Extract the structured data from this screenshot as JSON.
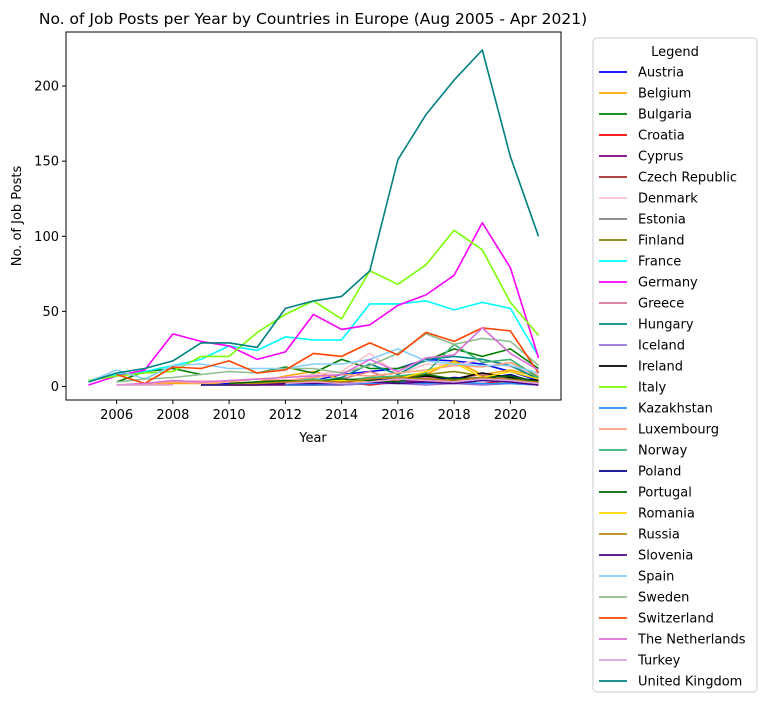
{
  "chart_data": {
    "type": "line",
    "title": "No. of Job Posts per Year by Countries in Europe (Aug 2005 - Apr 2021)",
    "xlabel": "Year",
    "ylabel": "No. of Job Posts",
    "xlim": [
      2004.2,
      2021.8
    ],
    "ylim": [
      -9,
      236
    ],
    "x_ticks": [
      2006,
      2008,
      2010,
      2012,
      2014,
      2016,
      2018,
      2020
    ],
    "y_ticks": [
      0,
      50,
      100,
      150,
      200
    ],
    "legend_title": "Legend",
    "legend_position": "outside right",
    "x": [
      2005,
      2006,
      2007,
      2008,
      2009,
      2010,
      2011,
      2012,
      2013,
      2014,
      2015,
      2016,
      2017,
      2018,
      2019,
      2020,
      2021
    ],
    "series": [
      {
        "name": "Austria",
        "color": "#0000ff",
        "values": [
          null,
          null,
          null,
          null,
          1,
          2,
          3,
          2,
          4,
          8,
          10,
          12,
          18,
          17,
          15,
          10,
          4
        ]
      },
      {
        "name": "Belgium",
        "color": "#ffa500",
        "values": [
          null,
          1,
          1,
          2,
          2,
          1,
          3,
          7,
          10,
          5,
          3,
          7,
          8,
          17,
          8,
          11,
          7
        ]
      },
      {
        "name": "Bulgaria",
        "color": "#008000",
        "values": [
          null,
          3,
          10,
          12,
          8,
          null,
          9,
          13,
          9,
          18,
          12,
          12,
          17,
          25,
          20,
          25,
          12
        ]
      },
      {
        "name": "Croatia",
        "color": "#ff0000",
        "values": [
          null,
          null,
          null,
          null,
          null,
          2,
          2,
          2,
          3,
          3,
          1,
          3,
          4,
          3,
          2,
          4,
          2
        ]
      },
      {
        "name": "Cyprus",
        "color": "#800080",
        "values": [
          null,
          null,
          null,
          null,
          null,
          1,
          1,
          1,
          1,
          1,
          2,
          4,
          3,
          2,
          6,
          5,
          2
        ]
      },
      {
        "name": "Czech Republic",
        "color": "#a52a2a",
        "values": [
          null,
          null,
          null,
          null,
          null,
          2,
          2,
          3,
          2,
          4,
          5,
          4,
          6,
          5,
          5,
          7,
          3
        ]
      },
      {
        "name": "Denmark",
        "color": "#ffc0cb",
        "values": [
          null,
          1,
          2,
          3,
          4,
          3,
          5,
          6,
          8,
          10,
          22,
          8,
          15,
          14,
          18,
          13,
          8
        ]
      },
      {
        "name": "Estonia",
        "color": "#808080",
        "values": [
          null,
          null,
          null,
          null,
          null,
          2,
          3,
          4,
          5,
          3,
          2,
          5,
          4,
          6,
          5,
          4,
          2
        ]
      },
      {
        "name": "Finland",
        "color": "#808000",
        "values": [
          null,
          null,
          null,
          null,
          null,
          1,
          2,
          3,
          2,
          4,
          3,
          6,
          8,
          10,
          7,
          5,
          3
        ]
      },
      {
        "name": "France",
        "color": "#00ffff",
        "values": [
          4,
          8,
          10,
          14,
          18,
          27,
          24,
          33,
          31,
          31,
          55,
          55,
          57,
          51,
          56,
          52,
          20
        ]
      },
      {
        "name": "Germany",
        "color": "#ff00ff",
        "values": [
          1,
          7,
          11,
          35,
          30,
          27,
          18,
          23,
          48,
          38,
          41,
          54,
          61,
          74,
          109,
          79,
          19
        ]
      },
      {
        "name": "Greece",
        "color": "#db7093",
        "values": [
          null,
          null,
          null,
          null,
          null,
          2,
          3,
          4,
          2,
          5,
          10,
          4,
          6,
          5,
          8,
          4,
          2
        ]
      },
      {
        "name": "Hungary",
        "color": "#008b8b",
        "values": [
          null,
          null,
          null,
          null,
          null,
          2,
          3,
          4,
          3,
          6,
          15,
          8,
          18,
          20,
          18,
          14,
          5
        ]
      },
      {
        "name": "Iceland",
        "color": "#9370db",
        "values": [
          null,
          null,
          null,
          null,
          null,
          null,
          null,
          1,
          1,
          1,
          2,
          2,
          1,
          2,
          1,
          2,
          1
        ]
      },
      {
        "name": "Ireland",
        "color": "#000000",
        "values": [
          null,
          null,
          null,
          null,
          null,
          1,
          2,
          2,
          3,
          2,
          4,
          5,
          7,
          5,
          9,
          6,
          4
        ]
      },
      {
        "name": "Italy",
        "color": "#7cfc00",
        "values": [
          4,
          7,
          9,
          10,
          20,
          20,
          36,
          48,
          57,
          45,
          77,
          68,
          81,
          104,
          91,
          56,
          34
        ]
      },
      {
        "name": "Kazakhstan",
        "color": "#1e90ff",
        "values": [
          null,
          null,
          null,
          null,
          null,
          null,
          null,
          1,
          1,
          2,
          2,
          3,
          2,
          3,
          2,
          2,
          1
        ]
      },
      {
        "name": "Luxembourg",
        "color": "#ffa07a",
        "values": [
          null,
          1,
          2,
          3,
          2,
          3,
          5,
          4,
          6,
          8,
          7,
          9,
          11,
          14,
          13,
          16,
          7
        ]
      },
      {
        "name": "Norway",
        "color": "#3cb371",
        "values": [
          null,
          null,
          null,
          null,
          null,
          2,
          3,
          3,
          5,
          4,
          6,
          7,
          9,
          28,
          16,
          18,
          6
        ]
      },
      {
        "name": "Poland",
        "color": "#00008b",
        "values": [
          null,
          null,
          null,
          null,
          1,
          1,
          2,
          2,
          2,
          3,
          4,
          5,
          4,
          6,
          5,
          8,
          2
        ]
      },
      {
        "name": "Portugal",
        "color": "#006400",
        "values": [
          null,
          null,
          null,
          null,
          null,
          2,
          3,
          4,
          3,
          5,
          4,
          3,
          8,
          5,
          6,
          7,
          3
        ]
      },
      {
        "name": "Romania",
        "color": "#ffd700",
        "values": [
          null,
          null,
          null,
          null,
          null,
          1,
          2,
          2,
          3,
          4,
          3,
          5,
          10,
          16,
          6,
          10,
          5
        ]
      },
      {
        "name": "Russia",
        "color": "#b8860b",
        "values": [
          null,
          null,
          null,
          null,
          null,
          1,
          2,
          3,
          4,
          3,
          5,
          6,
          5,
          4,
          6,
          4,
          3
        ]
      },
      {
        "name": "Slovenia",
        "color": "#4b0082",
        "values": [
          null,
          null,
          null,
          null,
          null,
          1,
          1,
          2,
          2,
          2,
          3,
          2,
          3,
          2,
          4,
          3,
          1
        ]
      },
      {
        "name": "Spain",
        "color": "#87cefa",
        "values": [
          3,
          11,
          5,
          14,
          15,
          12,
          12,
          12,
          15,
          15,
          18,
          25,
          17,
          15,
          14,
          14,
          9
        ]
      },
      {
        "name": "Sweden",
        "color": "#8fbc8f",
        "values": [
          null,
          3,
          5,
          6,
          8,
          10,
          9,
          12,
          12,
          9,
          14,
          22,
          35,
          28,
          32,
          30,
          14
        ]
      },
      {
        "name": "Switzerland",
        "color": "#ff4500",
        "values": [
          null,
          8,
          2,
          13,
          12,
          17,
          9,
          11,
          22,
          20,
          29,
          21,
          36,
          30,
          39,
          37,
          9
        ]
      },
      {
        "name": "The Netherlands",
        "color": "#da70d6",
        "values": [
          null,
          1,
          2,
          4,
          3,
          4,
          5,
          6,
          7,
          8,
          18,
          10,
          19,
          21,
          39,
          22,
          11
        ]
      },
      {
        "name": "Turkey",
        "color": "#dda0dd",
        "values": [
          null,
          1,
          1,
          1,
          null,
          null,
          null,
          2,
          3,
          2,
          3,
          5,
          4,
          3,
          5,
          4,
          2
        ]
      },
      {
        "name": "United Kingdom",
        "color": "#008080",
        "values": [
          3,
          9,
          12,
          17,
          29,
          29,
          26,
          52,
          57,
          60,
          77,
          151,
          181,
          204,
          224,
          153,
          100
        ]
      }
    ]
  }
}
